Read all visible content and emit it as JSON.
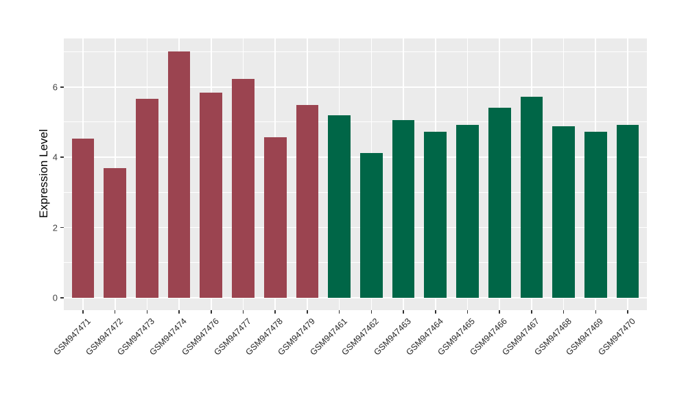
{
  "chart_data": {
    "type": "bar",
    "title": "",
    "xlabel": "",
    "ylabel": "Expression Level",
    "legend_position": "none",
    "grid": "major-and-minor-white-on-grey-panel",
    "panel_bg": "#EBEBEB",
    "grid_color": "#FFFFFF",
    "tick_color": "#333333",
    "categories": [
      "GSM947471",
      "GSM947472",
      "GSM947473",
      "GSM947474",
      "GSM947476",
      "GSM947477",
      "GSM947478",
      "GSM947479",
      "GSM947461",
      "GSM947462",
      "GSM947463",
      "GSM947464",
      "GSM947465",
      "GSM947466",
      "GSM947467",
      "GSM947468",
      "GSM947469",
      "GSM947470"
    ],
    "values": [
      4.53,
      3.7,
      5.67,
      7.01,
      5.84,
      6.24,
      4.58,
      5.49,
      5.19,
      4.12,
      5.05,
      4.73,
      4.93,
      5.41,
      5.72,
      4.88,
      4.72,
      4.93
    ],
    "bar_colors": [
      "#9B4450",
      "#9B4450",
      "#9B4450",
      "#9B4450",
      "#9B4450",
      "#9B4450",
      "#9B4450",
      "#9B4450",
      "#006647",
      "#006647",
      "#006647",
      "#006647",
      "#006647",
      "#006647",
      "#006647",
      "#006647",
      "#006647",
      "#006647"
    ],
    "groups": [
      {
        "name": "red-group",
        "color": "#9B4450",
        "bar_count": 8
      },
      {
        "name": "green-group",
        "color": "#006647",
        "bar_count": 10
      }
    ],
    "yticks": [
      0,
      2,
      4,
      6
    ],
    "yticks_minor": [
      1,
      3,
      5,
      7
    ],
    "ylim": [
      -0.352,
      7.383
    ],
    "x_range": [
      0.4,
      18.6
    ],
    "bar_width_ratio": 0.7
  }
}
